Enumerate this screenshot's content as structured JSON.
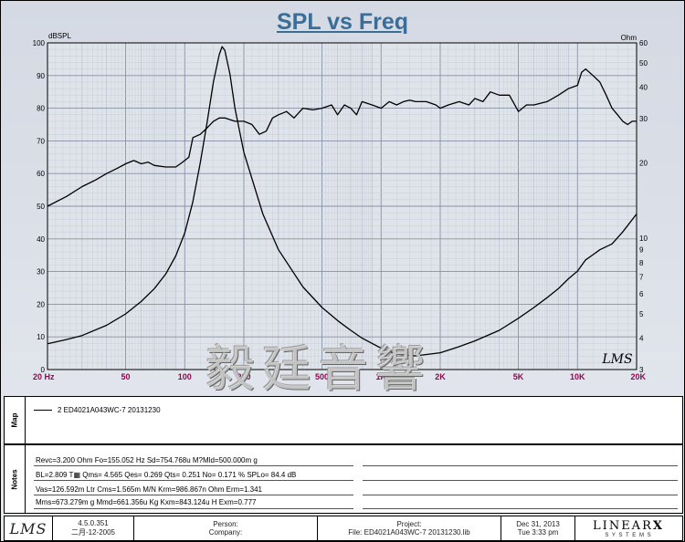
{
  "chart_data": {
    "type": "line",
    "title": "SPL vs Freq",
    "ylabel_left": "dBSPL",
    "ylabel_right": "Ohm",
    "x_scale": "log",
    "xlim": [
      20,
      20000
    ],
    "ylim_left": [
      0,
      100
    ],
    "ylim_right_log": [
      3,
      60
    ],
    "x_ticks": [
      {
        "value": 20,
        "label": "20  Hz"
      },
      {
        "value": 50,
        "label": "50"
      },
      {
        "value": 100,
        "label": "100"
      },
      {
        "value": 200,
        "label": "200"
      },
      {
        "value": 500,
        "label": "500"
      },
      {
        "value": 1000,
        "label": "1K"
      },
      {
        "value": 2000,
        "label": "2K"
      },
      {
        "value": 5000,
        "label": "5K"
      },
      {
        "value": 10000,
        "label": "10K"
      },
      {
        "value": 20000,
        "label": "20K"
      }
    ],
    "y_ticks_left": [
      0,
      10,
      20,
      30,
      40,
      50,
      60,
      70,
      80,
      90,
      100
    ],
    "y_ticks_right": [
      3,
      4,
      5,
      6,
      7,
      8,
      9,
      10,
      20,
      30,
      40,
      50,
      60
    ],
    "series": [
      {
        "name": "SPL",
        "axis": "left",
        "x": [
          20,
          25,
          30,
          35,
          40,
          45,
          50,
          55,
          60,
          65,
          70,
          80,
          90,
          95,
          100,
          105,
          110,
          120,
          130,
          140,
          150,
          160,
          170,
          180,
          200,
          220,
          240,
          260,
          280,
          300,
          330,
          360,
          400,
          450,
          500,
          560,
          600,
          650,
          700,
          750,
          800,
          900,
          1000,
          1100,
          1200,
          1300,
          1400,
          1500,
          1700,
          1900,
          2000,
          2200,
          2500,
          2800,
          3000,
          3300,
          3600,
          4000,
          4500,
          5000,
          5500,
          6000,
          7000,
          8000,
          9000,
          10000,
          10500,
          11000,
          12000,
          13000,
          14000,
          15000,
          16000,
          17000,
          18000,
          19000,
          20000
        ],
        "values": [
          50,
          53,
          56,
          58,
          60,
          61.5,
          63,
          64,
          63,
          63.5,
          62.5,
          62,
          62,
          63,
          64,
          65,
          71,
          72,
          74,
          76,
          77,
          77,
          76.5,
          76,
          76,
          75,
          72,
          73,
          77,
          78,
          79,
          77,
          80,
          79.5,
          80,
          81,
          78,
          81,
          80,
          78,
          82,
          81,
          80,
          82,
          81,
          82,
          82.5,
          82,
          82,
          81,
          80,
          81,
          82,
          81,
          83,
          82,
          85,
          84,
          84,
          79,
          81,
          81,
          82,
          84,
          86,
          87,
          91,
          92,
          90,
          88,
          84,
          80,
          78,
          76,
          75,
          76,
          76
        ]
      },
      {
        "name": "Impedance",
        "axis": "right",
        "x": [
          20,
          25,
          30,
          40,
          50,
          60,
          70,
          80,
          90,
          100,
          110,
          120,
          130,
          140,
          150,
          155,
          160,
          170,
          180,
          200,
          250,
          300,
          400,
          500,
          600,
          700,
          800,
          1000,
          1200,
          1500,
          2000,
          2500,
          3000,
          4000,
          5000,
          6000,
          7000,
          8000,
          9000,
          10000,
          11000,
          12000,
          13000,
          15000,
          17000,
          20000
        ],
        "values": [
          3.8,
          3.95,
          4.1,
          4.5,
          5.0,
          5.6,
          6.3,
          7.2,
          8.5,
          10.5,
          14,
          20,
          29,
          42,
          54,
          58,
          56,
          45,
          33,
          22,
          12.5,
          9.0,
          6.4,
          5.3,
          4.7,
          4.3,
          4.0,
          3.65,
          3.45,
          3.4,
          3.5,
          3.7,
          3.9,
          4.3,
          4.8,
          5.3,
          5.8,
          6.3,
          6.9,
          7.4,
          8.2,
          8.6,
          9.0,
          9.5,
          10.6,
          12.5
        ]
      }
    ],
    "logo": "LMS"
  },
  "map_panel": {
    "label": "Map",
    "legend_entry": "2   ED4021A043WC-7    20131230"
  },
  "notes_panel": {
    "label": "Notes",
    "lines": [
      "Revc=3.200 Ohm  Fo=155.052 Hz  Sd=754.768u M?Mld=500.000m g",
      "BL=2.809 T▦  Qms= 4.565  Qes= 0.269  Qts= 0.251  No= 0.171 %  SPLo= 84.4 dB",
      "Vas=126.592m Ltr  Cms=1.565m M/N  Krm=986.867n Ohm  Erm=1.341",
      "Mms=673.279m g  Mmd=661.356u Kg  Kxm=843.124u H  Exm=0.777"
    ]
  },
  "footer": {
    "logo": "LMS",
    "version": "4.5.0.351",
    "date": "二月-12-2005",
    "person_label": "Person:",
    "company_label": "Company:",
    "project_label": "Project:",
    "file_label": "File: ED4021A043WC-7 20131230.lib",
    "save_date": "Dec 31, 2013",
    "save_time": "Tue  3:33 pm",
    "brand_main": "LINEAR",
    "brand_x": "X",
    "brand_sub": "S Y S T E M S"
  },
  "watermark": "毅廷音響",
  "colors": {
    "title": "#3a6e99",
    "x_tick": "#8b0a50",
    "background": "#dfe3ea",
    "grid": "#9aa4b6"
  }
}
